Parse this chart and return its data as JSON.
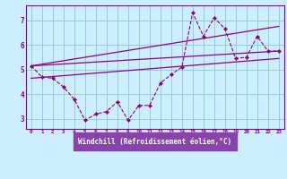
{
  "xlabel": "Windchill (Refroidissement éolien,°C)",
  "bg_color": "#cceeff",
  "line_color": "#880088",
  "grid_color": "#99cccc",
  "xlabel_bg": "#8844aa",
  "xlabel_fg": "#ffffff",
  "xlim": [
    -0.5,
    23.5
  ],
  "ylim": [
    2.6,
    7.6
  ],
  "xticks": [
    0,
    1,
    2,
    3,
    4,
    5,
    6,
    7,
    8,
    9,
    10,
    11,
    12,
    13,
    14,
    15,
    16,
    17,
    18,
    19,
    20,
    21,
    22,
    23
  ],
  "yticks": [
    3,
    4,
    5,
    6,
    7
  ],
  "hours": [
    0,
    1,
    2,
    3,
    4,
    5,
    6,
    7,
    8,
    9,
    10,
    11,
    12,
    13,
    14,
    15,
    16,
    17,
    18,
    19,
    20,
    21,
    22,
    23
  ],
  "line_data": [
    5.15,
    4.7,
    4.65,
    4.3,
    3.8,
    2.95,
    3.2,
    3.3,
    3.7,
    2.95,
    3.55,
    3.55,
    4.45,
    4.8,
    5.1,
    7.3,
    6.35,
    7.1,
    6.65,
    5.45,
    5.5,
    6.35,
    5.75,
    5.75
  ],
  "trend1_x": [
    0,
    23
  ],
  "trend1_y": [
    5.15,
    5.75
  ],
  "trend2_x": [
    0,
    23
  ],
  "trend2_y": [
    5.15,
    6.75
  ],
  "trend3_x": [
    0,
    23
  ],
  "trend3_y": [
    4.65,
    5.45
  ]
}
